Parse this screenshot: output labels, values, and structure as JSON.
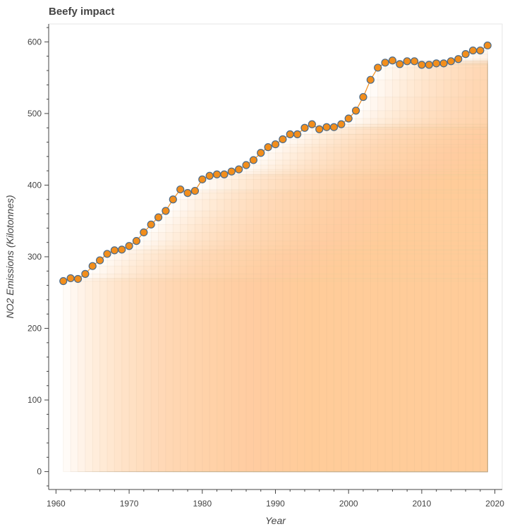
{
  "chart_data": {
    "type": "line",
    "title": "Beefy impact",
    "xlabel": "Year",
    "ylabel": "NO2 Emissions (Kilotonnes)",
    "xlim": [
      1959,
      2021
    ],
    "ylim": [
      -25,
      625
    ],
    "xticks": [
      1960,
      1970,
      1980,
      1990,
      2000,
      2010,
      2020
    ],
    "yticks": [
      0,
      100,
      200,
      300,
      400,
      500,
      600
    ],
    "x": [
      1961,
      1962,
      1963,
      1964,
      1965,
      1966,
      1967,
      1968,
      1969,
      1970,
      1971,
      1972,
      1973,
      1974,
      1975,
      1976,
      1977,
      1978,
      1979,
      1980,
      1981,
      1982,
      1983,
      1984,
      1985,
      1986,
      1987,
      1988,
      1989,
      1990,
      1991,
      1992,
      1993,
      1994,
      1995,
      1996,
      1997,
      1998,
      1999,
      2000,
      2001,
      2002,
      2003,
      2004,
      2005,
      2006,
      2007,
      2008,
      2009,
      2010,
      2011,
      2012,
      2013,
      2014,
      2015,
      2016,
      2017,
      2018,
      2019
    ],
    "series": [
      {
        "values": [
          266,
          270,
          269,
          276,
          287,
          295,
          304,
          309,
          310,
          315,
          322,
          334,
          345,
          355,
          364,
          380,
          394,
          389,
          392,
          408,
          413,
          415,
          415,
          419,
          422,
          428,
          435,
          445,
          453,
          457,
          464,
          471,
          471,
          480,
          485,
          478,
          481,
          481,
          485,
          493,
          504,
          523,
          547,
          564,
          571,
          574,
          569,
          573,
          573,
          568,
          568,
          570,
          570,
          573,
          576,
          583,
          588,
          588,
          595
        ],
        "color": "#f28e1c"
      }
    ],
    "fill_color": "#fdcd99",
    "grid": false,
    "legend": "none"
  }
}
